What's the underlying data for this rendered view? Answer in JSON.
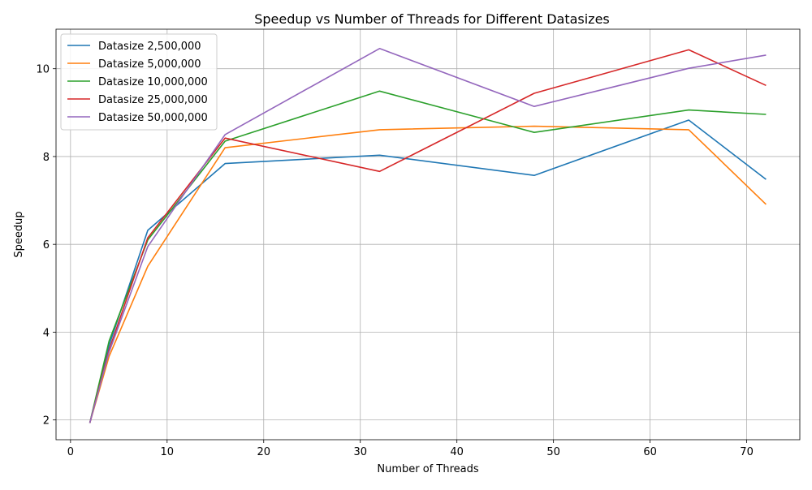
{
  "chart_data": {
    "type": "line",
    "title": "Speedup vs Number of Threads for Different Datasizes",
    "xlabel": "Number of Threads",
    "ylabel": "Speedup",
    "xlim": [
      -1.5,
      75.5
    ],
    "ylim": [
      1.55,
      10.9
    ],
    "xticks": [
      0,
      10,
      20,
      30,
      40,
      50,
      60,
      70
    ],
    "yticks": [
      2,
      4,
      6,
      8,
      10
    ],
    "grid": true,
    "legend_position": "top-left",
    "x": [
      2,
      4,
      8,
      16,
      32,
      48,
      64,
      72
    ],
    "series": [
      {
        "name": "Datasize 2,500,000",
        "color": "#1f77b4",
        "values": [
          1.93,
          3.7,
          6.32,
          7.84,
          8.03,
          7.57,
          8.83,
          7.48
        ]
      },
      {
        "name": "Datasize 5,000,000",
        "color": "#ff7f0e",
        "values": [
          1.93,
          3.45,
          5.5,
          8.2,
          8.61,
          8.69,
          8.61,
          6.91
        ]
      },
      {
        "name": "Datasize 10,000,000",
        "color": "#2ca02c",
        "values": [
          1.93,
          3.8,
          6.1,
          8.35,
          9.49,
          8.55,
          9.06,
          8.96
        ]
      },
      {
        "name": "Datasize 25,000,000",
        "color": "#d62728",
        "values": [
          1.93,
          3.6,
          6.15,
          8.42,
          7.66,
          9.44,
          10.43,
          9.62
        ]
      },
      {
        "name": "Datasize 50,000,000",
        "color": "#9467bd",
        "values": [
          1.93,
          3.55,
          5.95,
          8.5,
          10.46,
          9.14,
          10.01,
          10.31
        ]
      }
    ]
  }
}
